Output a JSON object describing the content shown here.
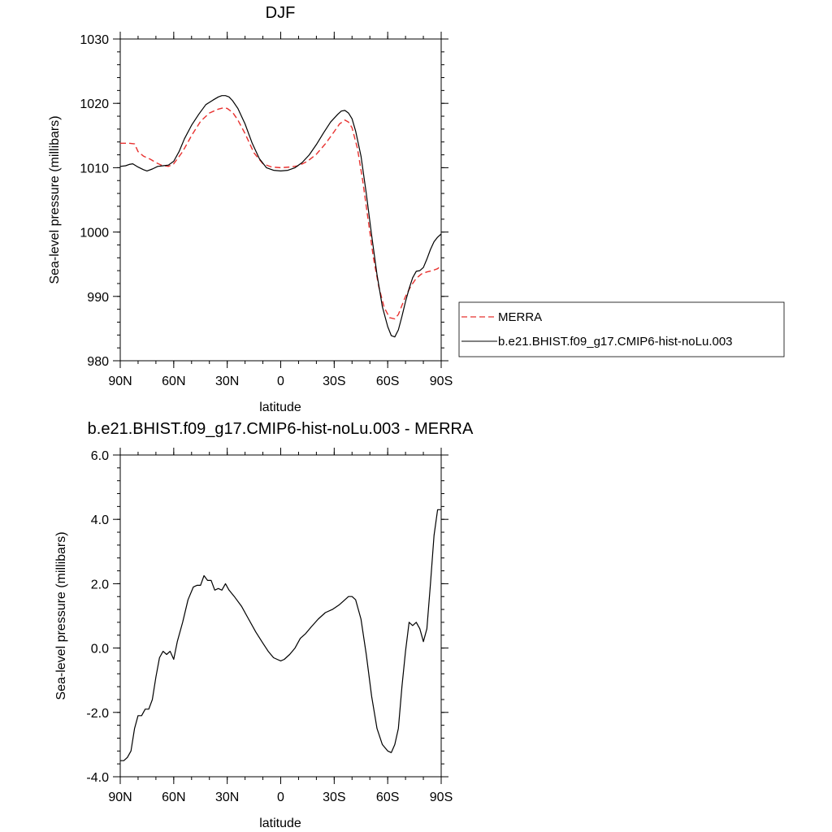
{
  "chart_data": [
    {
      "type": "line",
      "title": "DJF",
      "xlabel": "latitude",
      "ylabel": "Sea-level pressure (millibars)",
      "xlim": [
        90,
        -90
      ],
      "ylim": [
        980,
        1030
      ],
      "xticks": [
        90,
        60,
        30,
        0,
        -30,
        -60,
        -90
      ],
      "xtick_labels": [
        "90N",
        "60N",
        "30N",
        "0",
        "30S",
        "60S",
        "90S"
      ],
      "yticks": [
        980,
        990,
        1000,
        1010,
        1020,
        1030
      ],
      "ytick_labels": [
        "980",
        "990",
        "1000",
        "1010",
        "1020",
        "1030"
      ],
      "legend": "right",
      "series": [
        {
          "name": "MERRA",
          "color": "#e8312f",
          "style": "dashed",
          "x": [
            90,
            85,
            82,
            80,
            77,
            73,
            70,
            67,
            63,
            60,
            55,
            50,
            45,
            40,
            35,
            32,
            30,
            27,
            24,
            20,
            15,
            10,
            5,
            0,
            -5,
            -10,
            -15,
            -20,
            -25,
            -30,
            -33,
            -36,
            -38,
            -40,
            -43,
            -46,
            -49,
            -52,
            -55,
            -58,
            -61,
            -64,
            -66,
            -68,
            -70,
            -73,
            -76,
            -79,
            -82,
            -85,
            -88,
            -90
          ],
          "y": [
            1013.8,
            1013.8,
            1013.7,
            1012.5,
            1011.8,
            1011.3,
            1010.8,
            1010.4,
            1010.2,
            1010.6,
            1012.5,
            1015.0,
            1017.2,
            1018.5,
            1019.1,
            1019.3,
            1019.2,
            1018.6,
            1017.4,
            1015.3,
            1012.3,
            1010.6,
            1010.1,
            1010.0,
            1010.1,
            1010.3,
            1011.0,
            1012.1,
            1013.7,
            1015.6,
            1016.8,
            1017.4,
            1017.1,
            1016.2,
            1013.0,
            1008.0,
            1002.0,
            996.0,
            991.5,
            988.3,
            986.7,
            986.5,
            987.2,
            988.6,
            990.0,
            991.6,
            992.8,
            993.5,
            993.8,
            994.0,
            994.3,
            994.8
          ]
        },
        {
          "name": "b.e21.BHIST.f09_g17.CMIP6-hist-noLu.003",
          "color": "#000000",
          "style": "solid",
          "x": [
            90,
            87,
            85,
            83,
            80,
            77,
            75,
            72,
            69,
            66,
            63,
            60,
            57,
            54,
            50,
            46,
            42,
            38,
            35,
            33,
            31,
            29,
            27,
            24,
            20,
            16,
            12,
            8,
            4,
            0,
            -4,
            -8,
            -12,
            -16,
            -20,
            -24,
            -28,
            -32,
            -34,
            -36,
            -38,
            -40,
            -42,
            -45,
            -48,
            -51,
            -54,
            -57,
            -60,
            -62,
            -64,
            -66,
            -68,
            -70,
            -72,
            -74,
            -76,
            -78,
            -80,
            -82,
            -84,
            -86,
            -88,
            -90
          ],
          "y": [
            1010.2,
            1010.3,
            1010.5,
            1010.6,
            1010.1,
            1009.7,
            1009.5,
            1009.8,
            1010.2,
            1010.3,
            1010.4,
            1011.0,
            1012.5,
            1014.5,
            1016.6,
            1018.3,
            1019.8,
            1020.5,
            1021.0,
            1021.2,
            1021.2,
            1021.0,
            1020.4,
            1019.2,
            1016.8,
            1013.8,
            1011.4,
            1010.0,
            1009.6,
            1009.5,
            1009.6,
            1010.0,
            1010.8,
            1012.0,
            1013.6,
            1015.4,
            1017.1,
            1018.3,
            1018.8,
            1018.9,
            1018.5,
            1017.6,
            1015.7,
            1011.8,
            1006.0,
            999.5,
            993.4,
            988.4,
            985.3,
            983.9,
            983.7,
            984.8,
            986.9,
            989.2,
            991.2,
            992.9,
            993.9,
            994.0,
            994.5,
            995.8,
            997.3,
            998.5,
            999.2,
            999.7
          ]
        }
      ]
    },
    {
      "type": "line",
      "title": "b.e21.BHIST.f09_g17.CMIP6-hist-noLu.003 - MERRA",
      "xlabel": "latitude",
      "ylabel": "Sea-level pressure (millibars)",
      "xlim": [
        90,
        -90
      ],
      "ylim": [
        -4,
        6
      ],
      "xticks": [
        90,
        60,
        30,
        0,
        -30,
        -60,
        -90
      ],
      "xtick_labels": [
        "90N",
        "60N",
        "30N",
        "0",
        "30S",
        "60S",
        "90S"
      ],
      "yticks": [
        -4,
        -2,
        0,
        2,
        4,
        6
      ],
      "ytick_labels": [
        "-4.0",
        "-2.0",
        "0.0",
        "2.0",
        "4.0",
        "6.0"
      ],
      "series": [
        {
          "color": "#000000",
          "style": "solid",
          "x": [
            90,
            88,
            86,
            84,
            82,
            80,
            78,
            76,
            74,
            72,
            70,
            68,
            66,
            64,
            62,
            60,
            58,
            55,
            52,
            49,
            47,
            45,
            43,
            41,
            39,
            37,
            35,
            33,
            31,
            29,
            26,
            22,
            18,
            14,
            10,
            7,
            4,
            2,
            0,
            -2,
            -5,
            -8,
            -11,
            -14,
            -17,
            -21,
            -25,
            -29,
            -33,
            -36,
            -38,
            -40,
            -42,
            -45,
            -48,
            -51,
            -54,
            -57,
            -60,
            -62,
            -64,
            -66,
            -68,
            -70,
            -72,
            -74,
            -76,
            -78,
            -80,
            -82,
            -84,
            -86,
            -88,
            -90
          ],
          "y": [
            -3.5,
            -3.5,
            -3.4,
            -3.2,
            -2.5,
            -2.1,
            -2.1,
            -1.9,
            -1.9,
            -1.6,
            -0.9,
            -0.3,
            -0.1,
            -0.2,
            -0.1,
            -0.35,
            0.2,
            0.8,
            1.5,
            1.9,
            1.95,
            1.95,
            2.25,
            2.1,
            2.1,
            1.8,
            1.85,
            1.8,
            2.0,
            1.8,
            1.6,
            1.3,
            0.9,
            0.5,
            0.15,
            -0.1,
            -0.3,
            -0.35,
            -0.4,
            -0.35,
            -0.2,
            0.0,
            0.3,
            0.45,
            0.65,
            0.9,
            1.1,
            1.2,
            1.35,
            1.5,
            1.6,
            1.6,
            1.5,
            0.9,
            -0.2,
            -1.5,
            -2.5,
            -3.0,
            -3.2,
            -3.25,
            -3.0,
            -2.5,
            -1.2,
            -0.1,
            0.8,
            0.7,
            0.8,
            0.6,
            0.2,
            0.6,
            2.0,
            3.5,
            4.3,
            4.3
          ]
        }
      ]
    }
  ]
}
